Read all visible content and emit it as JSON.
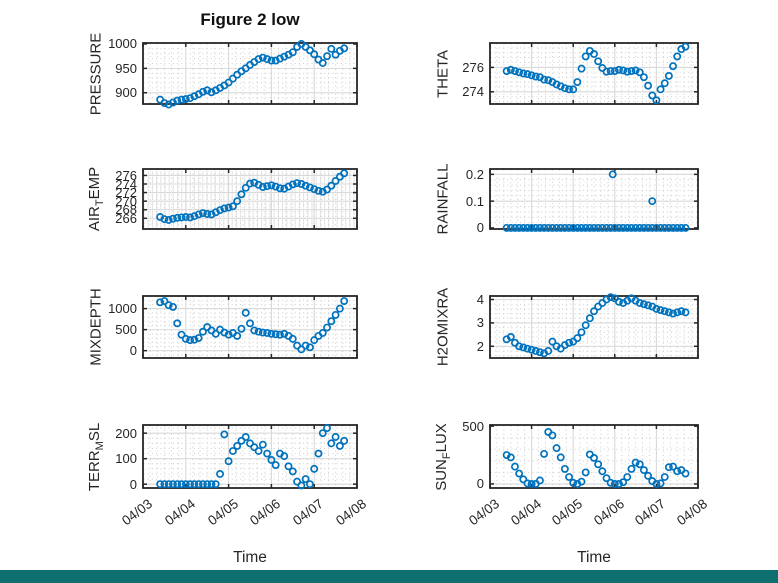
{
  "figure": {
    "title": "Figure 2 low",
    "xlabel": "Time",
    "colors": {
      "marker": "#0072BD",
      "axis": "#262626",
      "major_grid": "#d9d9d9",
      "minor_grid": "#cccccc",
      "background": "#ffffff",
      "bottom_bar": "#0e6f6f"
    },
    "x_axis": {
      "tick_labels": [
        "04/03",
        "04/04",
        "04/05",
        "04/06",
        "04/07",
        "04/08"
      ],
      "tick_values_days": [
        0,
        1,
        2,
        3,
        4,
        5
      ],
      "xlim_days": [
        0,
        5
      ],
      "note": "x in days after 04/03"
    }
  },
  "chart_data": [
    {
      "id": "pressure",
      "type": "scatter",
      "ylabel": "PRESSURE",
      "ylabel_parts": [
        {
          "t": "PRESSURE"
        }
      ],
      "ylim": [
        877,
        1002
      ],
      "yticks": [
        {
          "v": 900,
          "l": "900"
        },
        {
          "v": 950,
          "l": "950"
        },
        {
          "v": 1000,
          "l": "1000"
        }
      ],
      "show_xlabels": false,
      "series": {
        "t0": 0.4,
        "dt": 0.1,
        "y": [
          886,
          879,
          876,
          880,
          884,
          886,
          887,
          889,
          893,
          897,
          902,
          905,
          901,
          905,
          910,
          915,
          921,
          929,
          937,
          944,
          950,
          957,
          963,
          969,
          972,
          969,
          966,
          966,
          970,
          974,
          978,
          983,
          994,
          1000,
          994,
          987,
          979,
          968,
          961,
          975,
          990,
          978,
          986,
          991
        ]
      }
    },
    {
      "id": "theta",
      "type": "scatter",
      "ylabel": "THETA",
      "ylabel_parts": [
        {
          "t": "THETA"
        }
      ],
      "ylim": [
        273,
        278
      ],
      "yticks": [
        {
          "v": 274,
          "l": "274"
        },
        {
          "v": 276,
          "l": "276"
        }
      ],
      "show_xlabels": false,
      "series": {
        "t0": 0.4,
        "dt": 0.1,
        "y": [
          275.7,
          275.8,
          275.7,
          275.6,
          275.5,
          275.45,
          275.35,
          275.25,
          275.2,
          275.0,
          274.95,
          274.8,
          274.6,
          274.45,
          274.3,
          274.2,
          274.2,
          274.8,
          275.9,
          276.9,
          277.35,
          277.1,
          276.5,
          275.95,
          275.65,
          275.7,
          275.7,
          275.8,
          275.75,
          275.65,
          275.7,
          275.75,
          275.6,
          275.2,
          274.5,
          273.7,
          273.3,
          274.2,
          274.7,
          275.3,
          276.1,
          276.9,
          277.5,
          277.7
        ]
      }
    },
    {
      "id": "air-temp",
      "type": "scatter",
      "ylabel": "AIR_TEMP",
      "ylabel_parts": [
        {
          "t": "AIR"
        },
        {
          "t": "T",
          "sub": true
        },
        {
          "t": "EMP"
        }
      ],
      "ylim": [
        263.5,
        277.5
      ],
      "yticks": [
        {
          "v": 266,
          "l": "266"
        },
        {
          "v": 268,
          "l": "268"
        },
        {
          "v": 270,
          "l": "270"
        },
        {
          "v": 272,
          "l": "272"
        },
        {
          "v": 274,
          "l": "274"
        },
        {
          "v": 276,
          "l": "276"
        }
      ],
      "show_xlabels": false,
      "series": {
        "t0": 0.4,
        "dt": 0.1,
        "y": [
          266.3,
          265.8,
          265.6,
          265.9,
          266.1,
          266.2,
          266.3,
          266.2,
          266.5,
          266.9,
          267.2,
          267.0,
          266.9,
          267.4,
          267.9,
          268.3,
          268.5,
          268.8,
          270.0,
          271.6,
          273.1,
          274.1,
          274.3,
          273.8,
          273.3,
          273.5,
          273.7,
          273.4,
          273.0,
          272.9,
          273.4,
          273.9,
          274.2,
          274.0,
          273.6,
          273.2,
          272.8,
          272.4,
          272.2,
          272.7,
          273.6,
          274.7,
          275.7,
          276.5
        ]
      }
    },
    {
      "id": "rainfall",
      "type": "scatter",
      "ylabel": "RAINFALL",
      "ylabel_parts": [
        {
          "t": "RAINFALL"
        }
      ],
      "ylim": [
        -0.004,
        0.22
      ],
      "yticks": [
        {
          "v": 0,
          "l": "0"
        },
        {
          "v": 0.1,
          "l": "0.1"
        },
        {
          "v": 0.2,
          "l": "0.2"
        }
      ],
      "show_xlabels": false,
      "series": {
        "t0": 0.4,
        "dt": 0.1,
        "y": [
          0,
          0,
          0,
          0,
          0,
          0,
          0,
          0,
          0,
          0,
          0,
          0,
          0,
          0,
          0,
          0,
          0,
          0,
          0,
          0,
          0,
          0,
          0,
          0,
          0,
          0,
          0,
          0,
          0,
          0,
          0,
          0,
          0,
          0,
          0,
          0,
          0,
          0,
          0,
          0,
          0,
          0,
          0,
          0
        ]
      },
      "extra_points": [
        [
          2.95,
          0.2
        ],
        [
          3.9,
          0.1
        ]
      ]
    },
    {
      "id": "mixdepth",
      "type": "scatter",
      "ylabel": "MIXDEPTH",
      "ylabel_parts": [
        {
          "t": "MIXDEPTH"
        }
      ],
      "ylim": [
        -175,
        1300
      ],
      "yticks": [
        {
          "v": 0,
          "l": "0"
        },
        {
          "v": 500,
          "l": "500"
        },
        {
          "v": 1000,
          "l": "1000"
        }
      ],
      "show_xlabels": false,
      "series": {
        "t0": 0.4,
        "dt": 0.1,
        "y": [
          1150,
          1180,
          1080,
          1040,
          650,
          380,
          280,
          250,
          260,
          300,
          450,
          560,
          480,
          400,
          500,
          430,
          380,
          420,
          350,
          520,
          900,
          650,
          480,
          450,
          430,
          420,
          400,
          390,
          380,
          400,
          350,
          280,
          120,
          30,
          120,
          80,
          250,
          350,
          420,
          550,
          700,
          850,
          1000,
          1180
        ]
      }
    },
    {
      "id": "h2omixra",
      "type": "scatter",
      "ylabel": "H2OMIXRA",
      "ylabel_parts": [
        {
          "t": "H2OMIXRA"
        }
      ],
      "ylim": [
        1.5,
        4.15
      ],
      "yticks": [
        {
          "v": 2,
          "l": "2"
        },
        {
          "v": 3,
          "l": "3"
        },
        {
          "v": 4,
          "l": "4"
        }
      ],
      "show_xlabels": false,
      "series": {
        "t0": 0.4,
        "dt": 0.1,
        "y": [
          2.3,
          2.4,
          2.15,
          2.0,
          1.95,
          1.9,
          1.85,
          1.8,
          1.75,
          1.7,
          1.8,
          2.2,
          2.0,
          1.9,
          2.05,
          2.15,
          2.2,
          2.35,
          2.6,
          2.9,
          3.2,
          3.5,
          3.7,
          3.85,
          4.0,
          4.1,
          4.05,
          3.9,
          3.85,
          3.95,
          4.05,
          3.95,
          3.85,
          3.8,
          3.75,
          3.7,
          3.6,
          3.55,
          3.5,
          3.45,
          3.4,
          3.45,
          3.5,
          3.45
        ]
      }
    },
    {
      "id": "terr-msl",
      "type": "scatter",
      "ylabel": "TERR_MSL",
      "ylabel_parts": [
        {
          "t": "TERR"
        },
        {
          "t": "M",
          "sub": true
        },
        {
          "t": "SL"
        }
      ],
      "ylim": [
        -15,
        232
      ],
      "yticks": [
        {
          "v": 0,
          "l": "0"
        },
        {
          "v": 100,
          "l": "100"
        },
        {
          "v": 200,
          "l": "200"
        }
      ],
      "show_xlabels": true,
      "series": {
        "t0": 0.4,
        "dt": 0.1,
        "y": [
          0,
          0,
          0,
          0,
          0,
          0,
          0,
          0,
          0,
          0,
          0,
          0,
          0,
          0,
          40,
          195,
          90,
          130,
          150,
          170,
          185,
          160,
          145,
          130,
          155,
          120,
          95,
          75,
          120,
          110,
          70,
          50,
          10,
          -5,
          20,
          0,
          60,
          120,
          200,
          220,
          160,
          185,
          150,
          170
        ]
      }
    },
    {
      "id": "sun-flux",
      "type": "scatter",
      "ylabel": "SUN_FLUX",
      "ylabel_parts": [
        {
          "t": "SUN"
        },
        {
          "t": "F",
          "sub": true
        },
        {
          "t": "LUX"
        }
      ],
      "ylim": [
        -35,
        510
      ],
      "yticks": [
        {
          "v": 0,
          "l": "0"
        },
        {
          "v": 500,
          "l": "500"
        }
      ],
      "show_xlabels": true,
      "series": {
        "t0": 0.4,
        "dt": 0.1,
        "y": [
          250,
          230,
          150,
          90,
          40,
          5,
          0,
          0,
          30,
          260,
          450,
          420,
          310,
          230,
          130,
          60,
          10,
          0,
          20,
          100,
          255,
          225,
          170,
          110,
          50,
          10,
          0,
          0,
          15,
          60,
          130,
          185,
          170,
          120,
          70,
          25,
          0,
          5,
          60,
          145,
          150,
          110,
          120,
          90
        ]
      }
    }
  ]
}
